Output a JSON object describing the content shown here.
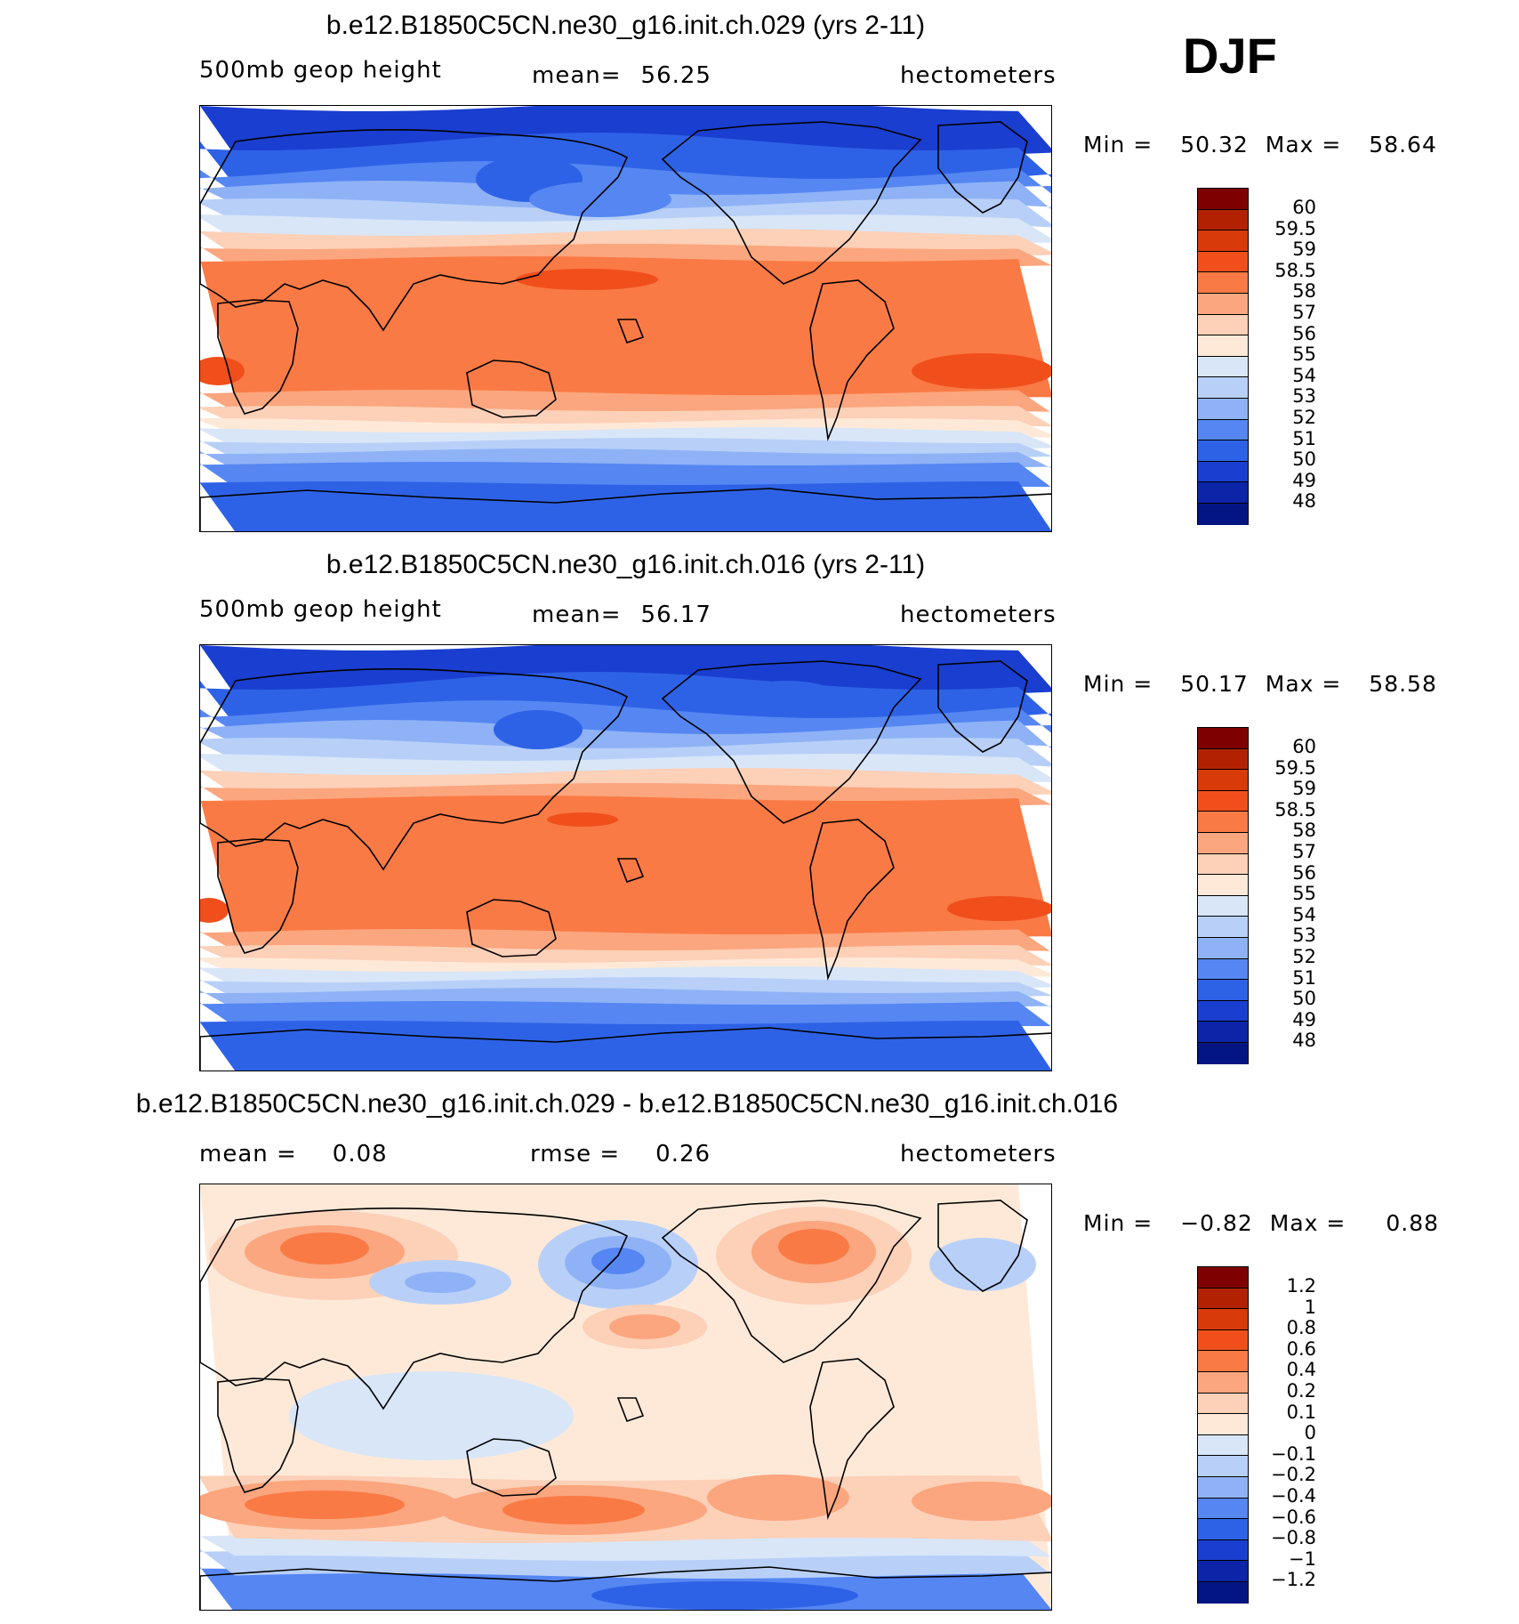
{
  "season": "DJF",
  "panels": [
    {
      "id": "top",
      "title": "b.e12.B1850C5CN.ne30_g16.init.ch.029 (yrs 2-11)",
      "variable": "500mb  geop  height",
      "stat_label": "mean=",
      "stat_value": "56.25",
      "units": "hectometers",
      "min_label": "Min  =",
      "min_value": "50.32",
      "max_label": "Max  =",
      "max_value": "58.64",
      "colorbar": [
        "60",
        "59.5",
        "59",
        "58.5",
        "58",
        "57",
        "56",
        "55",
        "54",
        "53",
        "52",
        "51",
        "50",
        "49",
        "48"
      ]
    },
    {
      "id": "middle",
      "title": "b.e12.B1850C5CN.ne30_g16.init.ch.016 (yrs 2-11)",
      "variable": "500mb  geop  height",
      "stat_label": "mean=",
      "stat_value": "56.17",
      "units": "hectometers",
      "min_label": "Min  =",
      "min_value": "50.17",
      "max_label": "Max  =",
      "max_value": "58.58",
      "colorbar": [
        "60",
        "59.5",
        "59",
        "58.5",
        "58",
        "57",
        "56",
        "55",
        "54",
        "53",
        "52",
        "51",
        "50",
        "49",
        "48"
      ]
    },
    {
      "id": "bottom",
      "title": "b.e12.B1850C5CN.ne30_g16.init.ch.029 - b.e12.B1850C5CN.ne30_g16.init.ch.016",
      "mean_label": "mean  =",
      "mean_value": "0.08",
      "rmse_label": "rmse  =",
      "rmse_value": "0.26",
      "units": "hectometers",
      "min_label": "Min  =",
      "min_value": "−0.82",
      "max_label": "Max  =",
      "max_value": "0.88",
      "colorbar": [
        "1.2",
        "1",
        "0.8",
        "0.6",
        "0.4",
        "0.2",
        "0.1",
        "0",
        "−0.1",
        "−0.2",
        "−0.4",
        "−0.6",
        "−0.8",
        "−1",
        "−1.2"
      ]
    }
  ],
  "colors": {
    "scale": [
      "#7f0000",
      "#b22200",
      "#d83a0a",
      "#f04f1c",
      "#fa7a45",
      "#fba67e",
      "#fdd0b8",
      "#fee9d8",
      "#d8e6f8",
      "#b8d0f8",
      "#8fb2f6",
      "#5586f2",
      "#2e62e6",
      "#1a3ed0",
      "#0c24a8",
      "#031582"
    ],
    "coast": "#000000"
  }
}
